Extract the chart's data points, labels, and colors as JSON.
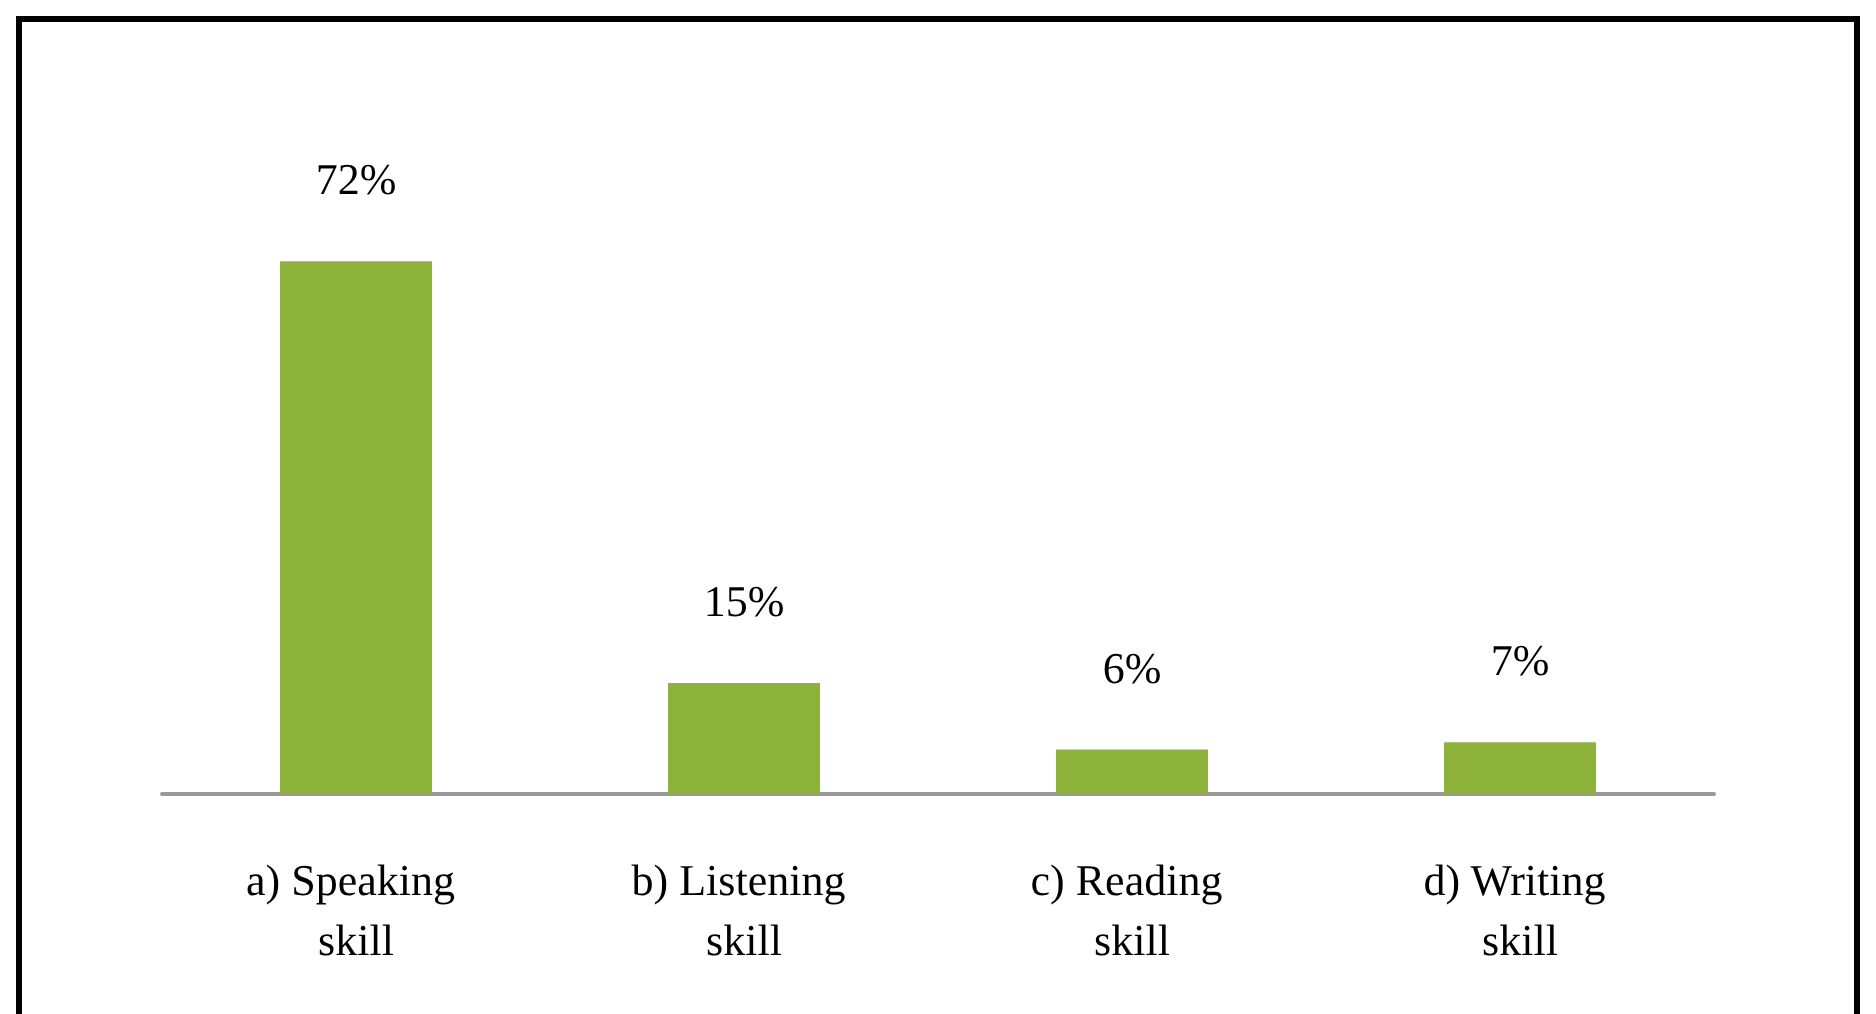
{
  "chart_data": {
    "type": "bar",
    "categories": [
      "a) Speaking skill",
      "b) Listening skill",
      "c) Reading skill",
      "d) Writing skill"
    ],
    "values": [
      72,
      15,
      6,
      7
    ],
    "value_labels": [
      "72%",
      "15%",
      "6%",
      "7%"
    ],
    "color": "#8db33a"
  }
}
